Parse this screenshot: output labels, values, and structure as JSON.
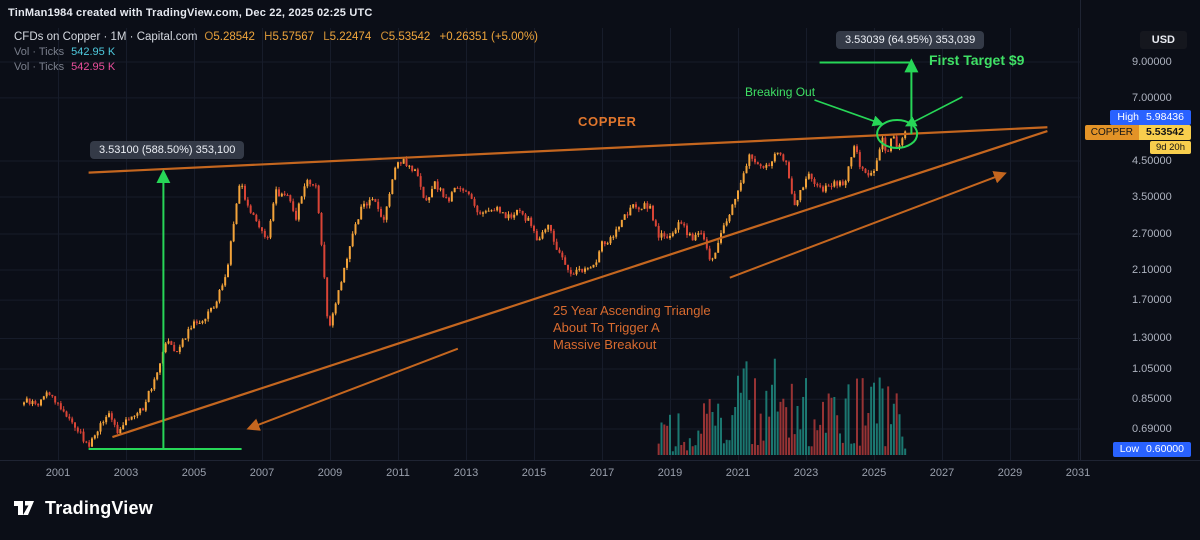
{
  "meta": {
    "attribution": "TinMan1984 created with TradingView.com, Dec 22, 2025 02:25 UTC"
  },
  "legend": {
    "title": "CFDs on Copper · 1M · Capital.com",
    "ohlc": {
      "o_label": "O",
      "o": "5.28542",
      "h_label": "H",
      "h": "5.57567",
      "l_label": "L",
      "l": "5.22474",
      "c_label": "C",
      "c": "5.53542",
      "change": "+0.26351 (+5.00%)"
    },
    "vol1": {
      "label": "Vol · Ticks",
      "value": "542.95 K"
    },
    "vol2": {
      "label": "Vol · Ticks",
      "value": "542.95 K"
    }
  },
  "currency_button": "USD",
  "price_scale": {
    "ticks": [
      "9.00000",
      "7.00000",
      "4.50000",
      "3.50000",
      "2.70000",
      "2.10000",
      "1.70000",
      "1.30000",
      "1.05000",
      "0.85000",
      "0.69000"
    ],
    "high_badge": {
      "label": "High",
      "value": "5.98436"
    },
    "symbol_badge": {
      "label": "COPPER",
      "value": "5.53542",
      "countdown": "9d 20h"
    },
    "low_badge": {
      "label": "Low",
      "value": "0.60000"
    }
  },
  "time_axis": [
    "2001",
    "2003",
    "2005",
    "2007",
    "2009",
    "2011",
    "2013",
    "2015",
    "2017",
    "2019",
    "2021",
    "2023",
    "2025",
    "2027",
    "2029",
    "2031"
  ],
  "annotations": {
    "left_measure": "3.53100 (588.50%) 353,100",
    "right_measure": "3.53039 (64.95%) 353,039",
    "breaking_out": "Breaking Out",
    "first_target": "First Target $9",
    "copper_label": "COPPER",
    "triangle_note": [
      "25 Year Ascending Triangle",
      "About To Trigger A",
      "Massive Breakout"
    ]
  },
  "footer": {
    "brand": "TradingView"
  },
  "colors": {
    "background": "#0b0e17",
    "grid": "#171c2a",
    "axis_border": "#1f2433",
    "candle_up": "#f3a33a",
    "candle_down": "#d94436",
    "volume_up": "#1f8a80",
    "volume_down": "#b03a3a",
    "trendline_orange": "#c4661f",
    "drawing_green": "#27d657",
    "annotation_orange": "#e0762d",
    "badge_blue": "#2962ff",
    "badge_yellow": "#f8ce4d",
    "badge_yellow_dark": "#e39327",
    "value_amber": "#f0a63c"
  },
  "chart_data": {
    "type": "candlestick",
    "symbol": "CFDs on Copper",
    "timeframe": "1M",
    "provider": "Capital.com",
    "price_scale_type": "log",
    "x_ticks": [
      2001,
      2003,
      2005,
      2007,
      2009,
      2011,
      2013,
      2015,
      2017,
      2019,
      2021,
      2023,
      2025,
      2027,
      2029,
      2031
    ],
    "y_ticks": [
      9,
      7,
      4.5,
      3.5,
      2.7,
      2.1,
      1.7,
      1.3,
      1.05,
      0.85,
      0.69
    ],
    "last_candle": {
      "open": 5.28542,
      "high": 5.57567,
      "low": 5.22474,
      "close": 5.53542,
      "change": 0.26351,
      "change_pct": 5.0
    },
    "session_high": 5.98436,
    "session_low": 0.6,
    "monthly_close_anchors": [
      [
        2000,
        0.84
      ],
      [
        2000.4,
        0.82
      ],
      [
        2000.7,
        0.9
      ],
      [
        2001,
        0.82
      ],
      [
        2001.4,
        0.73
      ],
      [
        2001.9,
        0.61
      ],
      [
        2002.2,
        0.7
      ],
      [
        2002.5,
        0.76
      ],
      [
        2002.8,
        0.67
      ],
      [
        2003.1,
        0.75
      ],
      [
        2003.5,
        0.8
      ],
      [
        2003.9,
        1.02
      ],
      [
        2004.2,
        1.32
      ],
      [
        2004.5,
        1.18
      ],
      [
        2004.9,
        1.42
      ],
      [
        2005.2,
        1.47
      ],
      [
        2005.6,
        1.62
      ],
      [
        2005.95,
        2.05
      ],
      [
        2006.35,
        3.95
      ],
      [
        2006.6,
        3.25
      ],
      [
        2006.95,
        2.85
      ],
      [
        2007.15,
        2.55
      ],
      [
        2007.4,
        3.62
      ],
      [
        2007.8,
        3.5
      ],
      [
        2008,
        3.05
      ],
      [
        2008.3,
        3.95
      ],
      [
        2008.6,
        3.75
      ],
      [
        2008.8,
        2.25
      ],
      [
        2008.95,
        1.35
      ],
      [
        2009.2,
        1.7
      ],
      [
        2009.6,
        2.55
      ],
      [
        2009.95,
        3.3
      ],
      [
        2010.3,
        3.45
      ],
      [
        2010.55,
        2.95
      ],
      [
        2010.95,
        4.35
      ],
      [
        2011.15,
        4.55
      ],
      [
        2011.55,
        4.1
      ],
      [
        2011.8,
        3.3
      ],
      [
        2012.1,
        3.85
      ],
      [
        2012.45,
        3.4
      ],
      [
        2012.7,
        3.72
      ],
      [
        2013.05,
        3.65
      ],
      [
        2013.4,
        3.1
      ],
      [
        2013.85,
        3.25
      ],
      [
        2014.2,
        3.02
      ],
      [
        2014.55,
        3.18
      ],
      [
        2014.95,
        2.88
      ],
      [
        2015.1,
        2.55
      ],
      [
        2015.4,
        2.88
      ],
      [
        2015.75,
        2.35
      ],
      [
        2016.05,
        2.05
      ],
      [
        2016.45,
        2.12
      ],
      [
        2016.8,
        2.18
      ],
      [
        2016.95,
        2.5
      ],
      [
        2017.3,
        2.6
      ],
      [
        2017.7,
        3.08
      ],
      [
        2017.95,
        3.28
      ],
      [
        2018.4,
        3.28
      ],
      [
        2018.65,
        2.68
      ],
      [
        2018.95,
        2.65
      ],
      [
        2019.3,
        2.92
      ],
      [
        2019.65,
        2.6
      ],
      [
        2019.95,
        2.8
      ],
      [
        2020.2,
        2.15
      ],
      [
        2020.55,
        2.8
      ],
      [
        2020.95,
        3.52
      ],
      [
        2021.35,
        4.7
      ],
      [
        2021.6,
        4.3
      ],
      [
        2021.95,
        4.4
      ],
      [
        2022.2,
        4.9
      ],
      [
        2022.45,
        4.35
      ],
      [
        2022.65,
        3.3
      ],
      [
        2022.95,
        3.8
      ],
      [
        2023.1,
        4.12
      ],
      [
        2023.4,
        3.68
      ],
      [
        2023.7,
        3.75
      ],
      [
        2023.95,
        3.88
      ],
      [
        2024.15,
        3.85
      ],
      [
        2024.4,
        5.05
      ],
      [
        2024.65,
        4.2
      ],
      [
        2024.95,
        4.05
      ],
      [
        2025.1,
        4.55
      ],
      [
        2025.25,
        5.2
      ],
      [
        2025.4,
        4.65
      ],
      [
        2025.55,
        5.6
      ],
      [
        2025.7,
        4.75
      ],
      [
        2025.8,
        5.15
      ],
      [
        2025.95,
        5.53542
      ]
    ],
    "volume_start": 2018.6,
    "trendlines": [
      {
        "name": "triangle-upper",
        "t1": 2001.9,
        "p1": 4.15,
        "t2": 2030.1,
        "p2": 5.7
      },
      {
        "name": "triangle-lower",
        "t1": 2002.6,
        "p1": 0.652,
        "t2": 2030.1,
        "p2": 5.55
      }
    ],
    "orange_arrows": [
      {
        "name": "support-direction-left",
        "t1": 2012.76,
        "p1": 1.21,
        "t2": 2006.65,
        "p2": 0.695
      },
      {
        "name": "support-direction-right",
        "t1": 2020.76,
        "p1": 1.99,
        "t2": 2028.8,
        "p2": 4.11
      }
    ],
    "measures": [
      {
        "name": "left-price-range",
        "label": "3.53100 (588.50%) 353,100",
        "base_t1": 2001.9,
        "base_t2": 2006.4,
        "arrow_t": 2004.1,
        "p_from": 0.6,
        "p_to": 4.131
      },
      {
        "name": "right-price-range",
        "label": "3.53039 (64.95%) 353,039",
        "top_t1": 2023.4,
        "top_t2": 2026.1,
        "arrow_t": 2026.1,
        "p_from": 5.435,
        "p_to": 8.966
      }
    ],
    "green_arrows": [
      {
        "name": "breaking-out-pointer",
        "t1": 2023.25,
        "p1": 6.9,
        "t2": 2025.2,
        "p2": 5.85
      },
      {
        "name": "first-target-pointer",
        "t1": 2027.6,
        "p1": 7.05,
        "t2": 2026.0,
        "p2": 5.8
      }
    ],
    "breakout_circle": {
      "t": 2025.68,
      "p": 5.44,
      "rx": 20,
      "ry": 14
    }
  }
}
